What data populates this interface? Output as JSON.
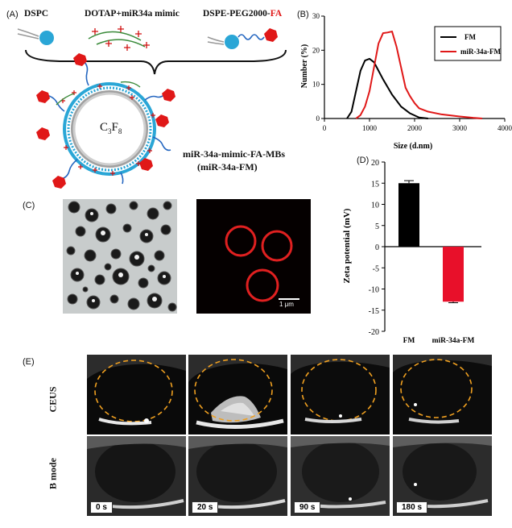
{
  "panelA": {
    "label": "(A)",
    "components": [
      "DSPC",
      "DOTAP+miR34a mimic",
      "DSPE-PEG2000-"
    ],
    "fa_suffix": "FA",
    "core_label": "C",
    "core_sub1": "3",
    "core_mid": "F",
    "core_sub2": "8",
    "name_line1": "miR-34a-mimic-FA-MBs",
    "name_line2": "(miR-34a-FM)"
  },
  "panelB": {
    "label": "(B)"
  },
  "panelC": {
    "label": "(C)",
    "scalebar": "1 μm"
  },
  "panelD": {
    "label": "(D)"
  },
  "panelE": {
    "label": "(E)",
    "row_labels": [
      "CEUS",
      "B mode"
    ],
    "times": [
      "0 s",
      "20 s",
      "90 s",
      "180 s"
    ]
  },
  "chart_data": [
    {
      "type": "line",
      "xlabel": "Size (d.nm)",
      "ylabel": "Number (%)",
      "xlim": [
        0,
        4000
      ],
      "ylim": [
        0,
        30
      ],
      "xticks": [
        0,
        1000,
        2000,
        3000,
        4000
      ],
      "yticks": [
        0,
        10,
        20,
        30
      ],
      "legend": "top-right",
      "series": [
        {
          "name": "FM",
          "color": "#000000",
          "x": [
            500,
            600,
            700,
            800,
            900,
            1000,
            1100,
            1200,
            1300,
            1500,
            1700,
            1900,
            2100,
            2300
          ],
          "y": [
            0,
            2,
            8,
            14,
            17,
            17.5,
            16.5,
            14,
            11.5,
            7,
            3.5,
            1.5,
            0.3,
            0
          ]
        },
        {
          "name": "miR-34a-FM",
          "color": "#e01818",
          "x": [
            700,
            800,
            900,
            1000,
            1100,
            1200,
            1300,
            1400,
            1500,
            1600,
            1700,
            1800,
            1900,
            2000,
            2100,
            2300,
            2600,
            3000,
            3300,
            3500
          ],
          "y": [
            0,
            1,
            3.5,
            8,
            15,
            22,
            25,
            25.2,
            25.5,
            21,
            15,
            9,
            6.5,
            4.5,
            3,
            2,
            1.2,
            0.6,
            0.2,
            0
          ]
        }
      ]
    },
    {
      "type": "bar",
      "categories": [
        "FM",
        "miR-34a-FM"
      ],
      "values": [
        15,
        -13
      ],
      "errors": [
        0.6,
        0.25
      ],
      "colors": [
        "#000000",
        "#e8102a"
      ],
      "ylabel": "Zeta potential (mV)",
      "ylim": [
        -20,
        20
      ],
      "yticks": [
        -20,
        -15,
        -10,
        -5,
        0,
        5,
        10,
        15,
        20
      ]
    }
  ]
}
